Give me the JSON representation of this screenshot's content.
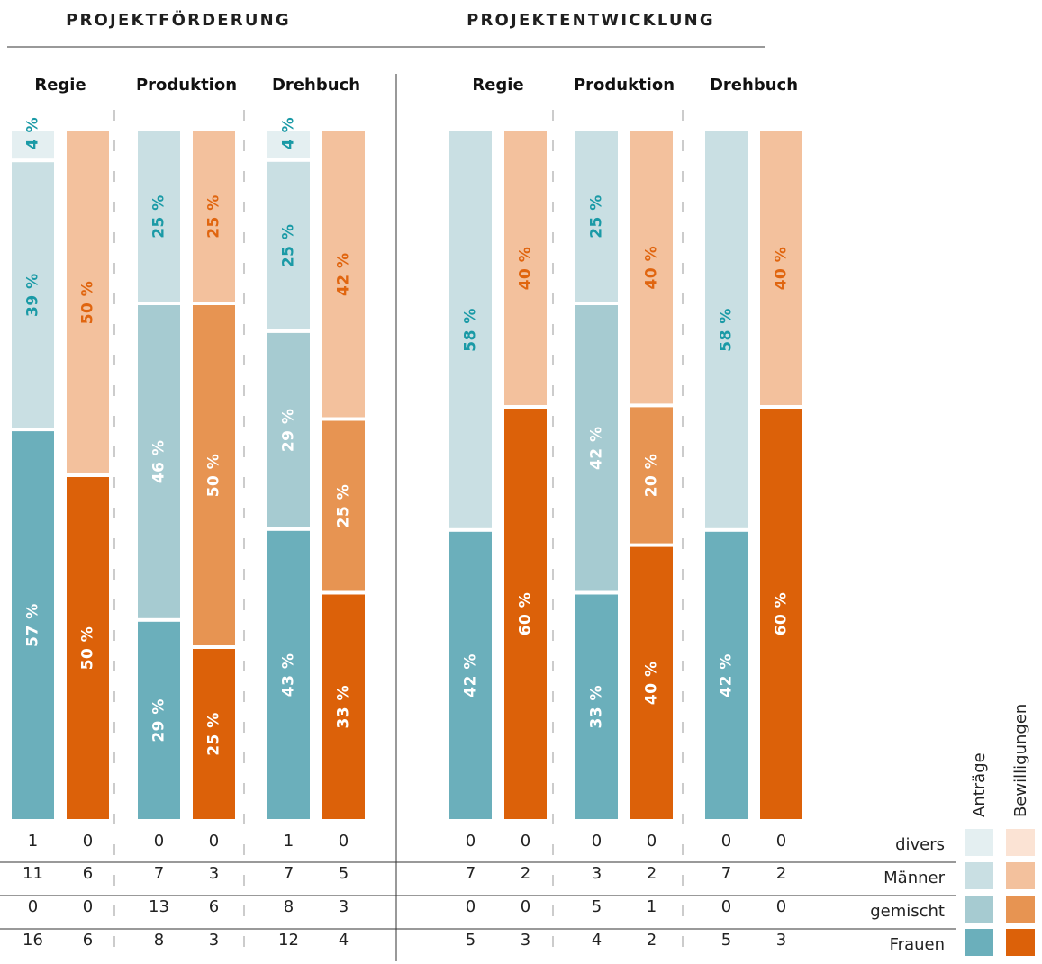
{
  "chart_data": {
    "type": "bar",
    "sections": [
      {
        "title": "PROJEKTFÖRDERUNG",
        "groups": [
          {
            "category": "Regie",
            "antraege": {
              "divers": 4,
              "maenner": 39,
              "gemischt": null,
              "frauen": 57
            },
            "bewilligungen": {
              "divers": null,
              "maenner": 50,
              "gemischt": null,
              "frauen": 50
            },
            "counts": {
              "divers": [
                1,
                0
              ],
              "maenner": [
                11,
                6
              ],
              "gemischt": [
                0,
                0
              ],
              "frauen": [
                16,
                6
              ]
            }
          },
          {
            "category": "Produktion",
            "antraege": {
              "divers": null,
              "maenner": 25,
              "gemischt": 46,
              "frauen": 29
            },
            "bewilligungen": {
              "divers": null,
              "maenner": 25,
              "gemischt": 50,
              "frauen": 25
            },
            "counts": {
              "divers": [
                0,
                0
              ],
              "maenner": [
                7,
                3
              ],
              "gemischt": [
                13,
                6
              ],
              "frauen": [
                8,
                3
              ]
            }
          },
          {
            "category": "Drehbuch",
            "antraege": {
              "divers": 4,
              "maenner": 25,
              "gemischt": 29,
              "frauen": 43
            },
            "bewilligungen": {
              "divers": null,
              "maenner": 42,
              "gemischt": 25,
              "frauen": 33
            },
            "counts": {
              "divers": [
                1,
                0
              ],
              "maenner": [
                7,
                5
              ],
              "gemischt": [
                8,
                3
              ],
              "frauen": [
                12,
                4
              ]
            }
          }
        ]
      },
      {
        "title": "PROJEKTENTWICKLUNG",
        "groups": [
          {
            "category": "Regie",
            "antraege": {
              "divers": null,
              "maenner": 58,
              "gemischt": null,
              "frauen": 42
            },
            "bewilligungen": {
              "divers": null,
              "maenner": 40,
              "gemischt": null,
              "frauen": 60
            },
            "counts": {
              "divers": [
                0,
                0
              ],
              "maenner": [
                7,
                2
              ],
              "gemischt": [
                0,
                0
              ],
              "frauen": [
                5,
                3
              ]
            }
          },
          {
            "category": "Produktion",
            "antraege": {
              "divers": null,
              "maenner": 25,
              "gemischt": 42,
              "frauen": 33
            },
            "bewilligungen": {
              "divers": null,
              "maenner": 40,
              "gemischt": 20,
              "frauen": 40
            },
            "counts": {
              "divers": [
                0,
                0
              ],
              "maenner": [
                3,
                2
              ],
              "gemischt": [
                5,
                1
              ],
              "frauen": [
                4,
                2
              ]
            }
          },
          {
            "category": "Drehbuch",
            "antraege": {
              "divers": null,
              "maenner": 58,
              "gemischt": null,
              "frauen": 42
            },
            "bewilligungen": {
              "divers": null,
              "maenner": 40,
              "gemischt": null,
              "frauen": 60
            },
            "counts": {
              "divers": [
                0,
                0
              ],
              "maenner": [
                7,
                2
              ],
              "gemischt": [
                0,
                0
              ],
              "frauen": [
                5,
                3
              ]
            }
          }
        ]
      }
    ],
    "segment_order": [
      "divers",
      "maenner",
      "gemischt",
      "frauen"
    ],
    "unit": "%",
    "legend": {
      "columns": [
        "Anträge",
        "Bewilligungen"
      ],
      "rows": [
        {
          "key": "divers",
          "label": "divers"
        },
        {
          "key": "maenner",
          "label": "Männer"
        },
        {
          "key": "gemischt",
          "label": "gemischt"
        },
        {
          "key": "frauen",
          "label": "Frauen"
        }
      ],
      "placement": "bottom-right"
    },
    "colors": {
      "antraege": {
        "divers": "#e4eff1",
        "maenner": "#c9dfe3",
        "gemischt": "#a6cbd1",
        "frauen": "#6bafbb"
      },
      "bewilligungen": {
        "divers": "#fbe3d4",
        "maenner": "#f3c19d",
        "gemischt": "#e79452",
        "frauen": "#dc6109"
      },
      "label_on_light_antraege": "#1a9aa6",
      "label_on_light_bewilligungen": "#e0650f",
      "label_on_dark": "#ffffff"
    }
  }
}
